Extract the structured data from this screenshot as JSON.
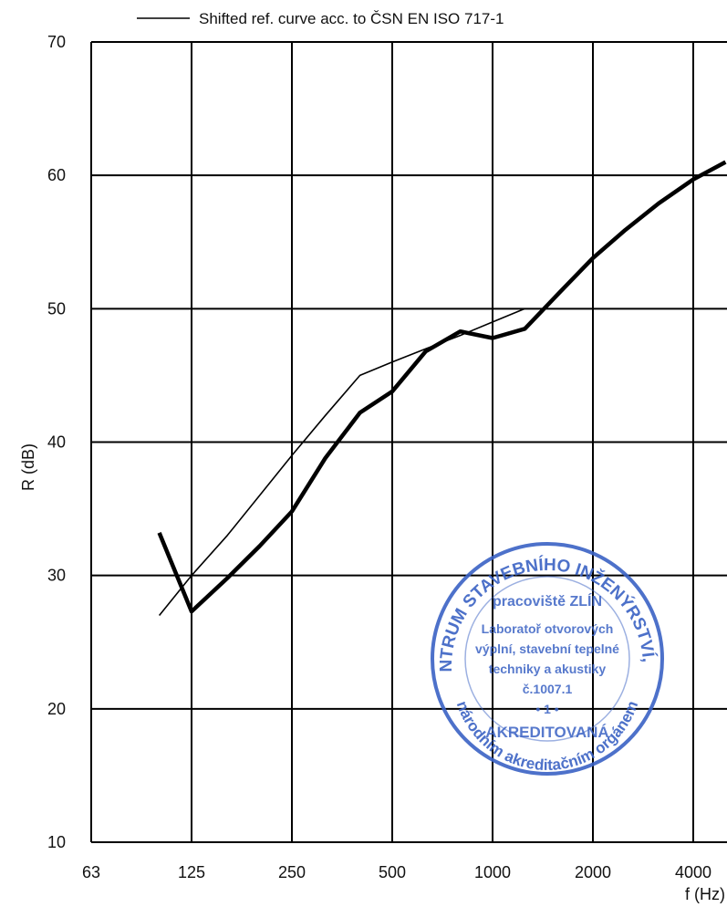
{
  "chart_data": {
    "type": "line",
    "xlabel": "f (Hz)",
    "ylabel": "R (dB)",
    "xscale": "log2",
    "ylim": [
      10,
      70
    ],
    "y_ticks": [
      10,
      20,
      30,
      40,
      50,
      60,
      70
    ],
    "x_ticks": [
      63,
      125,
      250,
      500,
      1000,
      2000,
      4000
    ],
    "grid": true,
    "legend_position": "top",
    "series": [
      {
        "name": "",
        "style": "thick",
        "color": "#000000",
        "x": [
          100,
          125,
          160,
          200,
          250,
          315,
          400,
          500,
          630,
          800,
          1000,
          1250,
          1600,
          2000,
          2500,
          3150,
          4000,
          5000
        ],
        "y": [
          33.2,
          27.3,
          29.8,
          32.2,
          34.8,
          38.8,
          42.2,
          43.8,
          46.8,
          48.3,
          47.8,
          48.5,
          51.3,
          53.8,
          55.9,
          57.9,
          59.7,
          61.0
        ]
      },
      {
        "name": "Shifted ref. curve acc. to ČSN EN ISO 717-1",
        "style": "thin",
        "color": "#000000",
        "x": [
          100,
          125,
          160,
          200,
          250,
          315,
          400,
          500,
          630,
          800,
          1000,
          1250
        ],
        "y": [
          27,
          30,
          33,
          36,
          39,
          42,
          45,
          46,
          47,
          48,
          49,
          50
        ]
      }
    ]
  },
  "stamp": {
    "outer_text": "CENTRUM STAVEBNÍHO INŽENÝRSTVÍ, a.s.",
    "sub_text": "pracoviště ZLÍN",
    "lines": [
      "Laboratoř otvorových",
      "výplní, stavební tepelné",
      "techniky a akustiky",
      "č.1007.1",
      "• 1 •"
    ],
    "bottom_text": "AKREDITOVANÁ",
    "bottom_outer_text": "národním akreditačním orgánem",
    "color": "#3a62c4"
  }
}
